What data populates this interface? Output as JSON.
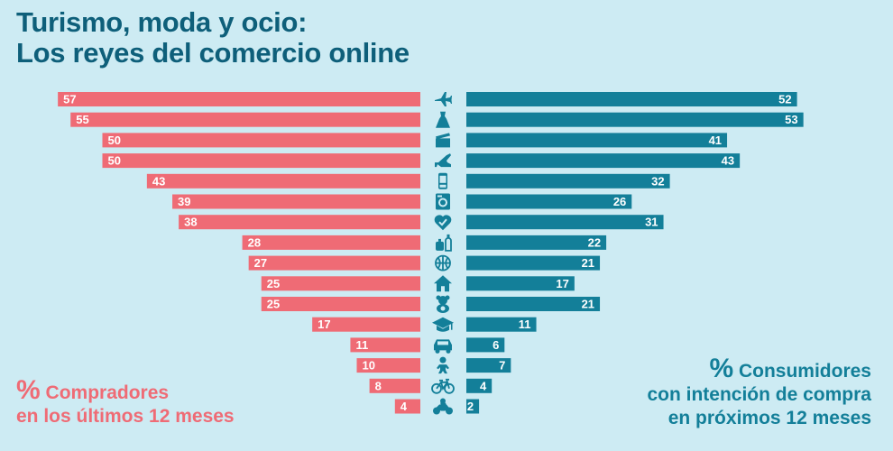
{
  "title": {
    "line1": "Turismo, moda y ocio:",
    "line2": "Los reyes del comercio online"
  },
  "legend": {
    "left": {
      "pct": "%",
      "line1": "Compradores",
      "line2": "en los últimos 12 meses"
    },
    "right": {
      "pct": "%",
      "line1": "Consumidores",
      "line2": "con intención de compra",
      "line3": "en próximos 12 meses"
    }
  },
  "colors": {
    "left": "#ef6b75",
    "right": "#137f99",
    "background": "#cdebf3",
    "title": "#0e5f7a"
  },
  "chart_data": {
    "type": "bar",
    "orientation": "horizontal-butterfly",
    "categories": [
      "plane-icon",
      "dress-icon",
      "clapperboard-icon",
      "high-heel-icon",
      "mobile-phone-icon",
      "washing-machine-icon",
      "heart-check-icon",
      "perfume-icon",
      "basketball-icon",
      "house-icon",
      "teddy-bear-icon",
      "graduation-cap-icon",
      "car-icon",
      "baby-icon",
      "bicycle-icon",
      "motorcycle-icon"
    ],
    "series": [
      {
        "name": "% Compradores en los últimos 12 meses",
        "values": [
          57,
          55,
          50,
          50,
          43,
          39,
          38,
          28,
          27,
          25,
          25,
          17,
          11,
          10,
          8,
          4
        ]
      },
      {
        "name": "% Consumidores con intención de compra en próximos 12 meses",
        "values": [
          52,
          53,
          41,
          43,
          32,
          26,
          31,
          22,
          21,
          17,
          21,
          11,
          6,
          7,
          4,
          2
        ]
      }
    ],
    "xlim": [
      0,
      57
    ],
    "grid": false
  }
}
